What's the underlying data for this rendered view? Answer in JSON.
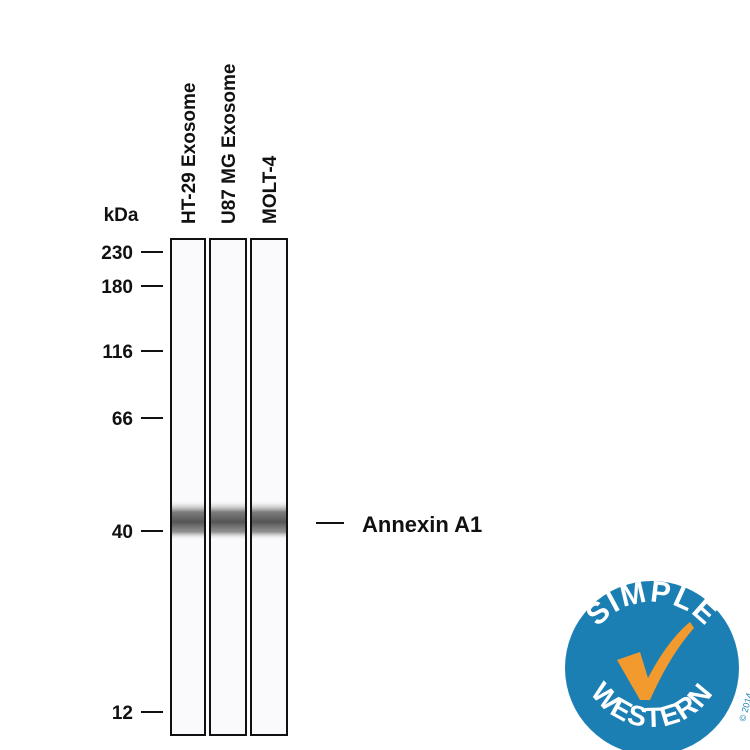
{
  "unit_label": "kDa",
  "lanes": [
    {
      "label": "HT-29 Exosome"
    },
    {
      "label": "U87 MG Exosome"
    },
    {
      "label": "MOLT-4"
    }
  ],
  "markers": [
    {
      "label": "230",
      "kda": 230
    },
    {
      "label": "180",
      "kda": 180
    },
    {
      "label": "116",
      "kda": 116
    },
    {
      "label": "66",
      "kda": 66
    },
    {
      "label": "40",
      "kda": 40
    },
    {
      "label": "12",
      "kda": 12
    }
  ],
  "band": {
    "label": "Annexin A1"
  },
  "logo": {
    "top_text": "SIMPLE",
    "bottom_text": "WESTERN",
    "copyright": "© 2014",
    "colors": {
      "circle": "#1b7fb3",
      "check": "#f29a2e",
      "text": "#ffffff"
    }
  }
}
